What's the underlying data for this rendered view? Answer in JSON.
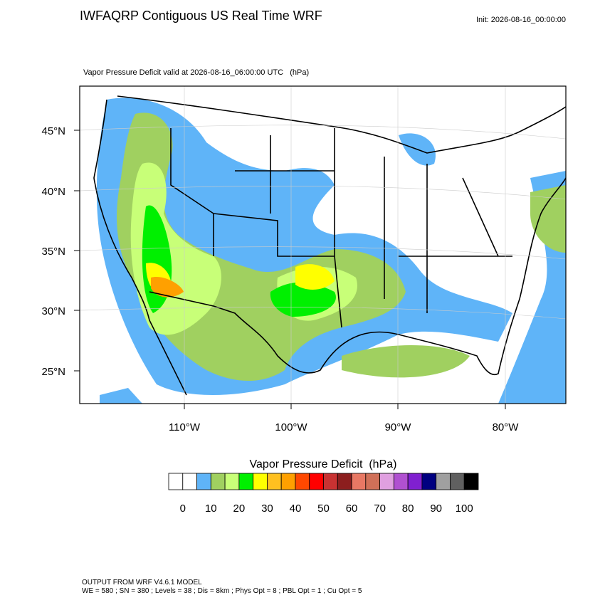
{
  "header": {
    "title": "IWFAQRP Contiguous US Real Time WRF",
    "init": "Init: 2026-08-16_00:00:00",
    "subtitle": "Vapor Pressure Deficit valid at 2026-08-16_06:00:00 UTC   (hPa)"
  },
  "map": {
    "lat_labels": [
      "45°N",
      "40°N",
      "35°N",
      "30°N",
      "25°N"
    ],
    "lon_labels": [
      "110°W",
      "100°W",
      "90°W",
      "80°W"
    ]
  },
  "colorbar": {
    "title": "Vapor Pressure Deficit  (hPa)",
    "colors": [
      "#ffffff",
      "#ffffff",
      "#5fb4f8",
      "#a0d060",
      "#c8ff78",
      "#00f000",
      "#ffff00",
      "#ffc020",
      "#ffa000",
      "#ff4800",
      "#ff0000",
      "#c83232",
      "#8c1e1e",
      "#e87864",
      "#d07058",
      "#e0a0e0",
      "#b050d0",
      "#8020d0",
      "#000080",
      "#a0a0a0",
      "#606060",
      "#000000"
    ],
    "ticks": [
      0,
      10,
      20,
      30,
      40,
      50,
      60,
      70,
      80,
      90,
      100
    ]
  },
  "footer": [
    "OUTPUT FROM WRF V4.6.1 MODEL",
    "WE = 580 ; SN = 380 ; Levels = 38 ; Dis = 8km ; Phys Opt = 8 ; PBL Opt = 1 ; Cu Opt = 5"
  ]
}
